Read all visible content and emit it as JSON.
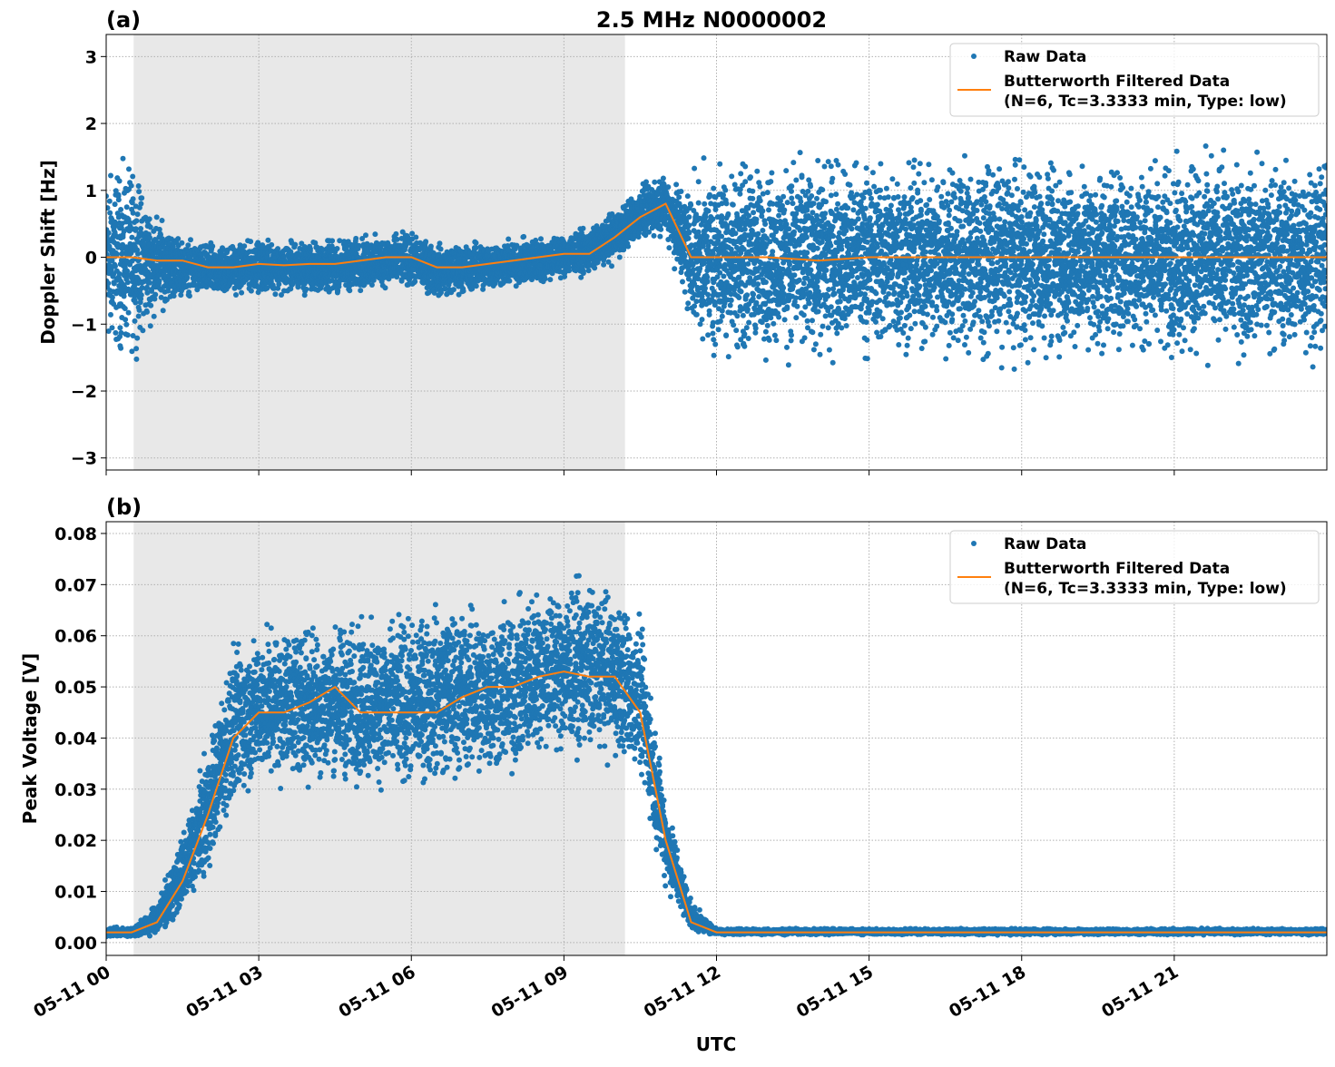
{
  "figure_title": "2.5 MHz N0000002",
  "xlabel": "UTC",
  "colors": {
    "raw": "#1f77b4",
    "filtered": "#ff7f0e",
    "shade": "#e8e8e8",
    "grid": "#b0b0b0"
  },
  "chart_data": [
    {
      "type": "scatter",
      "panel_label": "(a)",
      "ylabel": "Doppler Shift [Hz]",
      "xlim_hours": [
        0,
        24
      ],
      "ylim": [
        -3.18,
        3.33
      ],
      "yticks": [
        -3,
        -2,
        -1,
        0,
        1,
        2,
        3
      ],
      "ytick_labels": [
        "−3",
        "−2",
        "−1",
        "0",
        "1",
        "2",
        "3"
      ],
      "xtick_hours": [
        0,
        3,
        6,
        9,
        12,
        15,
        18,
        21
      ],
      "xtick_labels": [
        "05-11 00",
        "05-11 03",
        "05-11 06",
        "05-11 09",
        "05-11 12",
        "05-11 15",
        "05-11 18",
        "05-11 21"
      ],
      "grid": true,
      "legend_placement": "upper right",
      "shaded_span_hours": [
        0.54,
        10.2
      ],
      "series": [
        {
          "name": "Raw Data",
          "kind": "points",
          "color": "#1f77b4",
          "hours": [
            0,
            0.5,
            1,
            1.5,
            2,
            2.5,
            3,
            3.5,
            4,
            4.5,
            5,
            5.5,
            6,
            6.5,
            7,
            7.5,
            8,
            8.5,
            9,
            9.5,
            10,
            10.5,
            11,
            11.5,
            12,
            13,
            14,
            15,
            16,
            17,
            18,
            19,
            20,
            21,
            22,
            23,
            24
          ],
          "low": [
            -1.6,
            -1.6,
            -0.9,
            -0.6,
            -0.65,
            -0.6,
            -0.55,
            -0.6,
            -0.6,
            -0.6,
            -0.55,
            -0.5,
            -0.5,
            -0.65,
            -0.6,
            -0.55,
            -0.5,
            -0.45,
            -0.35,
            -0.3,
            -0.1,
            0.2,
            0.3,
            -1.2,
            -1.6,
            -1.6,
            -1.6,
            -1.6,
            -1.6,
            -1.6,
            -1.6,
            -1.6,
            -1.6,
            -1.6,
            -1.6,
            -1.6,
            -1.6
          ],
          "high": [
            1.5,
            1.5,
            0.7,
            0.3,
            0.25,
            0.25,
            0.3,
            0.28,
            0.3,
            0.3,
            0.35,
            0.4,
            0.4,
            0.25,
            0.25,
            0.3,
            0.3,
            0.35,
            0.4,
            0.45,
            0.75,
            1.1,
            1.3,
            1.2,
            1.6,
            1.6,
            1.6,
            1.6,
            1.6,
            1.6,
            1.6,
            1.6,
            1.6,
            1.6,
            1.6,
            1.6,
            1.6
          ]
        },
        {
          "name": "Butterworth Filtered Data\n(N=6, Tc=3.3333 min, Type: low)",
          "kind": "line",
          "color": "#ff7f0e",
          "hours": [
            0,
            0.5,
            1,
            1.5,
            2,
            2.5,
            3,
            3.5,
            4,
            4.5,
            5,
            5.5,
            6,
            6.5,
            7,
            7.5,
            8,
            8.5,
            9,
            9.5,
            10,
            10.5,
            11,
            11.5,
            12,
            13,
            14,
            15,
            16,
            17,
            18,
            19,
            20,
            21,
            22,
            23,
            24
          ],
          "values": [
            0,
            0,
            -0.05,
            -0.05,
            -0.15,
            -0.15,
            -0.1,
            -0.12,
            -0.1,
            -0.1,
            -0.05,
            0,
            0,
            -0.15,
            -0.15,
            -0.1,
            -0.05,
            0,
            0.05,
            0.05,
            0.3,
            0.6,
            0.8,
            0,
            0,
            0,
            -0.05,
            0,
            0,
            0,
            0,
            0,
            0,
            0,
            0,
            0,
            0
          ]
        }
      ],
      "legend": [
        "Raw Data",
        "Butterworth Filtered Data",
        "(N=6, Tc=3.3333 min, Type: low)"
      ]
    },
    {
      "type": "scatter",
      "panel_label": "(b)",
      "ylabel": "Peak Voltage [V]",
      "xlim_hours": [
        0,
        24
      ],
      "ylim": [
        -0.0025,
        0.0823
      ],
      "yticks": [
        0,
        0.01,
        0.02,
        0.03,
        0.04,
        0.05,
        0.06,
        0.07,
        0.08
      ],
      "ytick_labels": [
        "0.00",
        "0.01",
        "0.02",
        "0.03",
        "0.04",
        "0.05",
        "0.06",
        "0.07",
        "0.08"
      ],
      "xtick_hours": [
        0,
        3,
        6,
        9,
        12,
        15,
        18,
        21
      ],
      "xtick_labels": [
        "05-11 00",
        "05-11 03",
        "05-11 06",
        "05-11 09",
        "05-11 12",
        "05-11 15",
        "05-11 18",
        "05-11 21"
      ],
      "grid": true,
      "legend_placement": "upper right",
      "shaded_span_hours": [
        0.54,
        10.2
      ],
      "series": [
        {
          "name": "Raw Data",
          "kind": "points",
          "color": "#1f77b4",
          "hours": [
            0,
            0.5,
            1,
            1.5,
            2,
            2.5,
            3,
            3.5,
            4,
            4.5,
            5,
            5.5,
            6,
            6.5,
            7,
            7.5,
            8,
            8.5,
            9,
            9.5,
            10,
            10.5,
            11,
            11.5,
            12,
            13,
            14,
            15,
            16,
            17,
            18,
            19,
            20,
            21,
            22,
            23,
            24
          ],
          "low": [
            0.001,
            0.001,
            0.001,
            0.005,
            0.012,
            0.025,
            0.03,
            0.03,
            0.03,
            0.03,
            0.028,
            0.028,
            0.028,
            0.03,
            0.03,
            0.03,
            0.03,
            0.035,
            0.035,
            0.035,
            0.035,
            0.03,
            0.01,
            0.002,
            0.0015,
            0.0015,
            0.0015,
            0.0015,
            0.0015,
            0.0015,
            0.0015,
            0.0015,
            0.0015,
            0.0015,
            0.0015,
            0.0015,
            0.0015
          ],
          "high": [
            0.003,
            0.003,
            0.008,
            0.022,
            0.04,
            0.06,
            0.062,
            0.064,
            0.064,
            0.064,
            0.065,
            0.065,
            0.065,
            0.068,
            0.068,
            0.068,
            0.068,
            0.072,
            0.072,
            0.072,
            0.07,
            0.065,
            0.03,
            0.008,
            0.0028,
            0.0028,
            0.0028,
            0.0028,
            0.0028,
            0.0028,
            0.0028,
            0.0028,
            0.0028,
            0.0028,
            0.0028,
            0.0028,
            0.0028
          ]
        },
        {
          "name": "Butterworth Filtered Data\n(N=6, Tc=3.3333 min, Type: low)",
          "kind": "line",
          "color": "#ff7f0e",
          "hours": [
            0,
            0.5,
            1,
            1.5,
            2,
            2.5,
            3,
            3.5,
            4,
            4.5,
            5,
            5.5,
            6,
            6.5,
            7,
            7.5,
            8,
            8.5,
            9,
            9.5,
            10,
            10.5,
            11,
            11.5,
            12,
            13,
            14,
            15,
            16,
            17,
            18,
            19,
            20,
            21,
            22,
            23,
            24
          ],
          "values": [
            0.002,
            0.002,
            0.004,
            0.012,
            0.025,
            0.04,
            0.045,
            0.045,
            0.047,
            0.05,
            0.045,
            0.045,
            0.045,
            0.045,
            0.048,
            0.05,
            0.05,
            0.052,
            0.053,
            0.052,
            0.052,
            0.045,
            0.02,
            0.004,
            0.002,
            0.002,
            0.002,
            0.002,
            0.002,
            0.002,
            0.002,
            0.002,
            0.002,
            0.002,
            0.002,
            0.002,
            0.002
          ]
        }
      ],
      "legend": [
        "Raw Data",
        "Butterworth Filtered Data",
        "(N=6, Tc=3.3333 min, Type: low)"
      ]
    }
  ]
}
